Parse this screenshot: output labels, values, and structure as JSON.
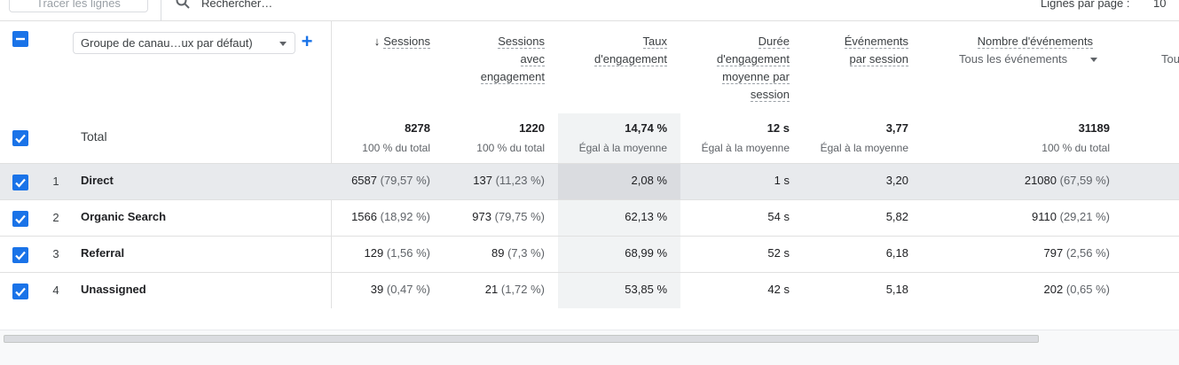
{
  "toolbar": {
    "plot_rows": "Tracer les lignes",
    "search_placeholder": "Rechercher…",
    "rows_per_page_label": "Lignes par page :",
    "rows_per_page_value": "10"
  },
  "dimension": {
    "selected": "Groupe de canau…ux par défaut)",
    "add_label": "+"
  },
  "headers": {
    "sessions": "Sessions",
    "engaged_sessions": [
      "Sessions",
      "avec",
      "engagement"
    ],
    "engagement_rate": [
      "Taux",
      "d'engagement"
    ],
    "avg_engagement_time": [
      "Durée",
      "d'engagement",
      "moyenne par",
      "session"
    ],
    "events_per_session": [
      "Événements",
      "par session"
    ],
    "event_count": "Nombre d'événements",
    "event_filter": "Tous les événements",
    "cut_column": "Tou"
  },
  "totals": {
    "label": "Total",
    "sessions": "8278",
    "sessions_sub": "100 % du total",
    "engaged": "1220",
    "engaged_sub": "100 % du total",
    "rate": "14,74 %",
    "rate_sub": "Égal à la moyenne",
    "time": "12 s",
    "time_sub": "Égal à la moyenne",
    "eps": "3,77",
    "eps_sub": "Égal à la moyenne",
    "events": "31189",
    "events_sub": "100 % du total"
  },
  "rows": [
    {
      "idx": "1",
      "name": "Direct",
      "sessions": "6587",
      "sessions_pct": "(79,57 %)",
      "engaged": "137",
      "engaged_pct": "(11,23 %)",
      "rate": "2,08 %",
      "time": "1 s",
      "eps": "3,20",
      "events": "21080",
      "events_pct": "(67,59 %)"
    },
    {
      "idx": "2",
      "name": "Organic Search",
      "sessions": "1566",
      "sessions_pct": "(18,92 %)",
      "engaged": "973",
      "engaged_pct": "(79,75 %)",
      "rate": "62,13 %",
      "time": "54 s",
      "eps": "5,82",
      "events": "9110",
      "events_pct": "(29,21 %)"
    },
    {
      "idx": "3",
      "name": "Referral",
      "sessions": "129",
      "sessions_pct": "(1,56 %)",
      "engaged": "89",
      "engaged_pct": "(7,3 %)",
      "rate": "68,99 %",
      "time": "52 s",
      "eps": "6,18",
      "events": "797",
      "events_pct": "(2,56 %)"
    },
    {
      "idx": "4",
      "name": "Unassigned",
      "sessions": "39",
      "sessions_pct": "(0,47 %)",
      "engaged": "21",
      "engaged_pct": "(1,72 %)",
      "rate": "53,85 %",
      "time": "42 s",
      "eps": "5,18",
      "events": "202",
      "events_pct": "(0,65 %)"
    }
  ],
  "colors": {
    "accent": "#1a73e8",
    "row_highlight": "#e8eaed",
    "band": "#f1f3f4"
  }
}
